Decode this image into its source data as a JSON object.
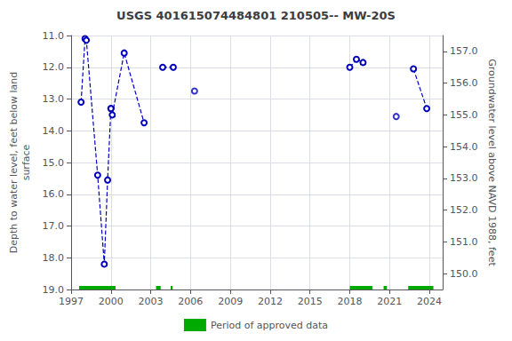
{
  "chart_data": {
    "type": "line",
    "title": "USGS 401615074484801 210505-- MW-20S",
    "ylabel": "Depth to water level, feet below land\nsurface",
    "y2label": "Groundwater level above NAVD 1988, feet",
    "grid": true,
    "legend": "bottom",
    "xlim": [
      1997,
      2025
    ],
    "xticks": [
      1997,
      2000,
      2003,
      2006,
      2009,
      2012,
      2015,
      2018,
      2021,
      2024
    ],
    "ylim": [
      19.0,
      11.0
    ],
    "yticks": [
      {
        "value": 11.0,
        "label": "11.0"
      },
      {
        "value": 12.0,
        "label": "12.0"
      },
      {
        "value": 13.0,
        "label": "13.0"
      },
      {
        "value": 14.0,
        "label": "14.0"
      },
      {
        "value": 15.0,
        "label": "15.0"
      },
      {
        "value": 16.0,
        "label": "16.0"
      },
      {
        "value": 17.0,
        "label": "17.0"
      },
      {
        "value": 18.0,
        "label": "18.0"
      },
      {
        "value": 19.0,
        "label": "19.0"
      }
    ],
    "y2lim": [
      149.5,
      157.5
    ],
    "y2ticks": [
      {
        "value": 150.0,
        "label": "150.0"
      },
      {
        "value": 151.0,
        "label": "151.0"
      },
      {
        "value": 152.0,
        "label": "152.0"
      },
      {
        "value": 153.0,
        "label": "153.0"
      },
      {
        "value": 154.0,
        "label": "154.0"
      },
      {
        "value": 155.0,
        "label": "155.0"
      },
      {
        "value": 156.0,
        "label": "156.0"
      },
      {
        "value": 157.0,
        "label": "157.0"
      }
    ],
    "series": [
      {
        "type": "line",
        "color": "#0000bb",
        "marker": "open_circle",
        "line_style": "dashed",
        "points": [
          [
            1997.75,
            13.1
          ],
          [
            1998.05,
            11.1
          ],
          [
            1998.15,
            11.15
          ],
          [
            1999.0,
            15.4
          ],
          [
            1999.5,
            18.2
          ],
          [
            1999.75,
            15.55
          ],
          [
            2000.0,
            13.3
          ]
        ]
      },
      {
        "type": "line",
        "color": "#0000bb",
        "marker": "open_circle",
        "line_style": "dashed",
        "points": [
          [
            2000.0,
            13.3
          ],
          [
            2000.1,
            13.5
          ],
          [
            2001.0,
            11.55
          ],
          [
            2002.5,
            13.75
          ]
        ]
      },
      {
        "type": "line",
        "color": "#0000bb",
        "marker": "open_circle",
        "line_style": "dashed",
        "points": [
          [
            2003.9,
            12.0
          ],
          [
            2004.7,
            12.0
          ]
        ]
      },
      {
        "type": "line",
        "color": "#0000bb",
        "marker": "open_circle",
        "line_style": "dashed",
        "points": [
          [
            2018.0,
            12.0
          ],
          [
            2018.5,
            11.75
          ],
          [
            2019.0,
            11.85
          ]
        ]
      },
      {
        "type": "line",
        "color": "#0000bb",
        "marker": "open_circle",
        "line_style": "dashed",
        "points": [
          [
            2022.8,
            12.05
          ],
          [
            2023.8,
            13.3
          ]
        ]
      },
      {
        "type": "scatter",
        "color": "#0000bb",
        "marker": "open_circle",
        "points": [
          [
            2006.3,
            12.75
          ],
          [
            2021.5,
            13.55
          ]
        ]
      },
      {
        "type": "bar",
        "name": "Period of approved data",
        "color": "#00aa00",
        "orientation": "horizontal",
        "y": 19.0,
        "periods": [
          [
            1997.6,
            2000.35
          ],
          [
            2003.4,
            2003.75
          ],
          [
            2004.5,
            2004.65
          ],
          [
            2018.0,
            2019.7
          ],
          [
            2020.55,
            2020.8
          ],
          [
            2022.4,
            2024.3
          ]
        ]
      }
    ]
  }
}
